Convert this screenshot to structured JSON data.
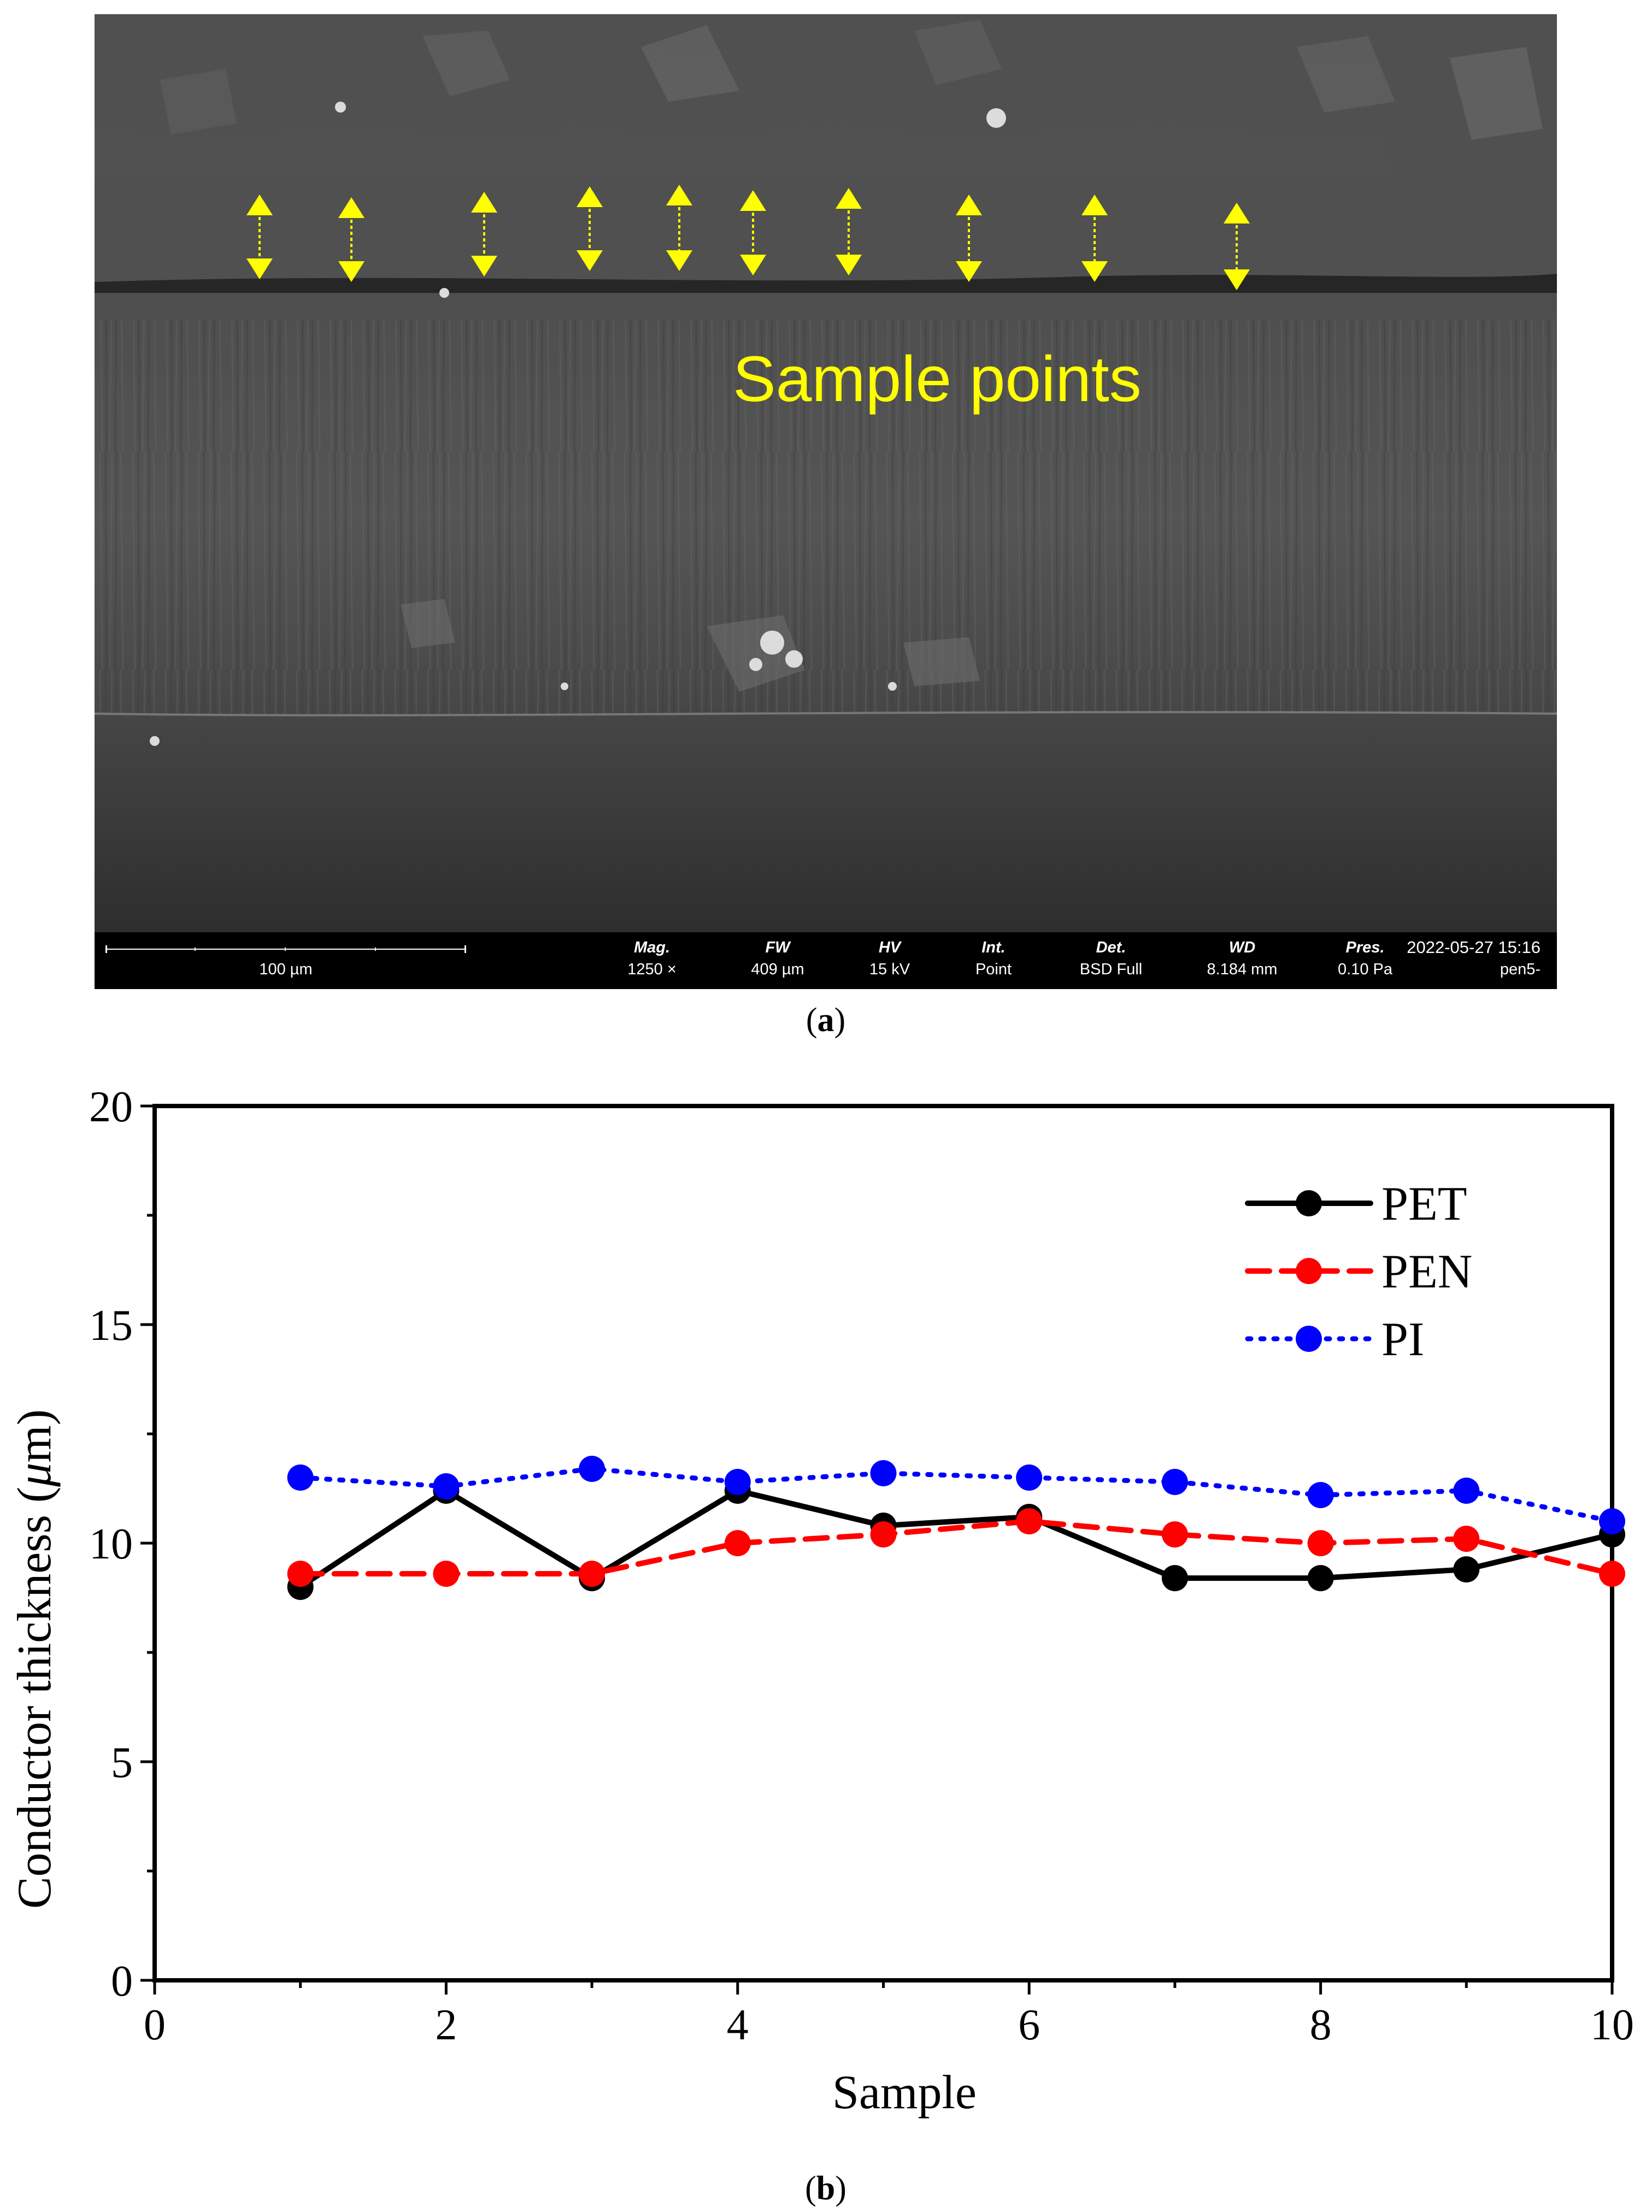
{
  "panel_a": {
    "overlay_label": "Sample points",
    "scale_label": "100 µm",
    "databar": [
      {
        "head": "Mag.",
        "value": "1250 ×"
      },
      {
        "head": "FW",
        "value": "409 µm"
      },
      {
        "head": "HV",
        "value": "15 kV"
      },
      {
        "head": "Int.",
        "value": "Point"
      },
      {
        "head": "Det.",
        "value": "BSD Full"
      },
      {
        "head": "WD",
        "value": "8.184 mm"
      },
      {
        "head": "Pres.",
        "value": "0.10 Pa"
      }
    ],
    "timestamp": "2022-05-27 15:16",
    "image_id": "pen5-",
    "caption_letter": "a",
    "colors": {
      "overlay": "#ffff00",
      "background": "#3c3c3c"
    }
  },
  "panel_b": {
    "caption_letter": "b"
  },
  "chart_data": {
    "type": "line",
    "xlabel": "Sample",
    "ylabel": "Conductor thickness (μm)",
    "ylabel_parts": [
      "Conductor thickness (",
      "μ",
      "m)"
    ],
    "xlim": [
      0,
      10
    ],
    "ylim": [
      0,
      20
    ],
    "xticks": [
      "0",
      "2",
      "4",
      "6",
      "8",
      "10"
    ],
    "yticks": [
      "0",
      "5",
      "10",
      "15",
      "20"
    ],
    "grid": false,
    "legend_position": "top-right",
    "x": [
      1,
      2,
      3,
      4,
      5,
      6,
      7,
      8,
      9,
      10
    ],
    "series": [
      {
        "name": "PET",
        "color": "#000000",
        "line_style": "solid",
        "values": [
          9.0,
          11.2,
          9.2,
          11.2,
          10.4,
          10.6,
          9.2,
          9.2,
          9.4,
          10.2
        ]
      },
      {
        "name": "PEN",
        "color": "#ff0000",
        "line_style": "dashed",
        "values": [
          9.3,
          9.3,
          9.3,
          10.0,
          10.2,
          10.5,
          10.2,
          10.0,
          10.1,
          9.3
        ]
      },
      {
        "name": "PI",
        "color": "#0000ff",
        "line_style": "dotted",
        "values": [
          11.5,
          11.3,
          11.7,
          11.4,
          11.6,
          11.5,
          11.4,
          11.1,
          11.2,
          10.5
        ]
      }
    ]
  }
}
